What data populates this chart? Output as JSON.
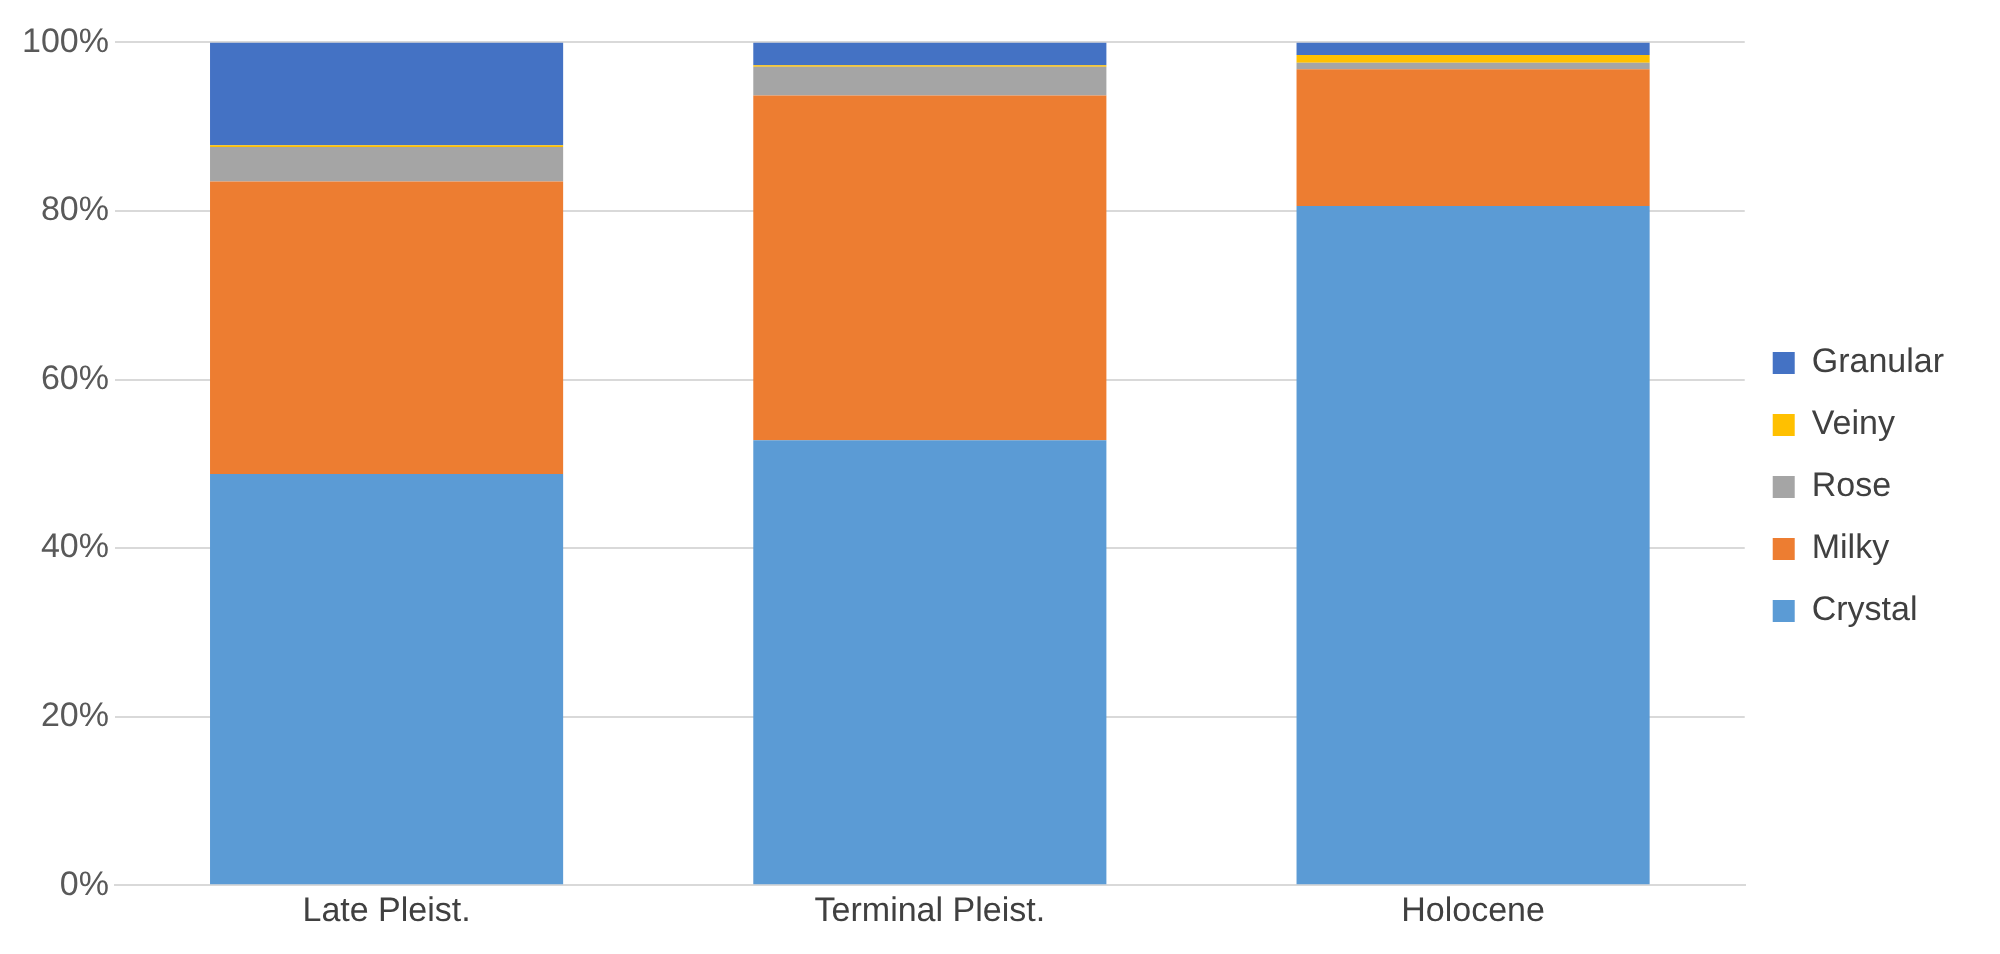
{
  "chart_data": {
    "type": "bar",
    "stacked": true,
    "categories": [
      "Late Pleist.",
      "Terminal Pleist.",
      "Holocene"
    ],
    "series": [
      {
        "name": "Crystal",
        "color": "#5b9bd5",
        "values": [
          48.8,
          52.8,
          80.6
        ]
      },
      {
        "name": "Milky",
        "color": "#ed7d31",
        "values": [
          34.7,
          40.9,
          16.2
        ]
      },
      {
        "name": "Rose",
        "color": "#a5a5a5",
        "values": [
          4.1,
          3.4,
          0.8
        ]
      },
      {
        "name": "Veiny",
        "color": "#ffc000",
        "values": [
          0.2,
          0.2,
          0.9
        ]
      },
      {
        "name": "Granular",
        "color": "#4472c4",
        "values": [
          12.2,
          2.7,
          1.5
        ]
      }
    ],
    "ylim": [
      0,
      100
    ],
    "yticks": [
      {
        "value": 0,
        "label": "0%"
      },
      {
        "value": 20,
        "label": "20%"
      },
      {
        "value": 40,
        "label": "40%"
      },
      {
        "value": 60,
        "label": "60%"
      },
      {
        "value": 80,
        "label": "80%"
      },
      {
        "value": 100,
        "label": "100%"
      }
    ],
    "grid": "y",
    "legend": "right"
  }
}
